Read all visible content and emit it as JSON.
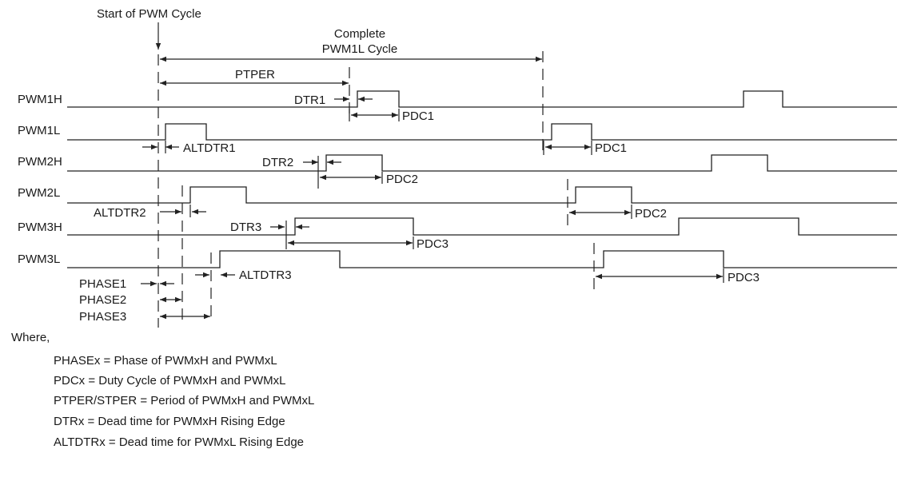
{
  "start_label": "Start of PWM Cycle",
  "complete_label": [
    "Complete",
    "PWM1L Cycle"
  ],
  "signals": [
    "PWM1H",
    "PWM1L",
    "PWM2H",
    "PWM2L",
    "PWM3H",
    "PWM3L"
  ],
  "annotations": {
    "ptper": "PTPER",
    "dtr1": "DTR1",
    "pdc1_h": "PDC1",
    "altdtr1": "ALTDTR1",
    "pdc1_l": "PDC1",
    "dtr2": "DTR2",
    "pdc2_h": "PDC2",
    "altdtr2": "ALTDTR2",
    "pdc2_l": "PDC2",
    "dtr3": "DTR3",
    "pdc3_h": "PDC3",
    "altdtr3": "ALTDTR3",
    "pdc3_l": "PDC3",
    "phase1": "PHASE1",
    "phase2": "PHASE2",
    "phase3": "PHASE3"
  },
  "legend": {
    "heading": "Where,",
    "lines": [
      "PHASEx = Phase of PWMxH and PWMxL",
      "PDCx = Duty Cycle of PWMxH and PWMxL",
      "PTPER/STPER = Period of PWMxH and PWMxL",
      "DTRx = Dead time for PWMxH Rising Edge",
      "ALTDTRx = Dead time for PWMxL Rising Edge"
    ]
  }
}
